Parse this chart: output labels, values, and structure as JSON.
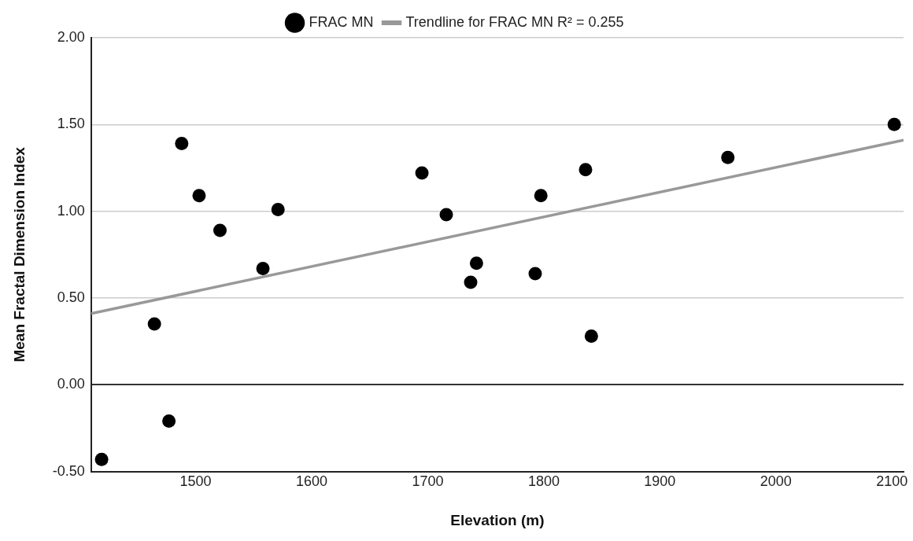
{
  "chart_data": {
    "type": "scatter",
    "xlabel": "Elevation (m)",
    "ylabel": "Mean Fractal Dimension Index",
    "xlim": [
      1410,
      2110
    ],
    "xticks": [
      1500,
      1600,
      1700,
      1800,
      1900,
      2000,
      2100
    ],
    "ylim": [
      -0.5,
      2.0
    ],
    "yticks": [
      {
        "value": -0.5,
        "label": "-0.50"
      },
      {
        "value": 0,
        "label": "0.00"
      },
      {
        "value": 0.5,
        "label": "0.50"
      },
      {
        "value": 1,
        "label": "1.00"
      },
      {
        "value": 1.5,
        "label": "1.50"
      },
      {
        "value": 2,
        "label": "2.00"
      }
    ],
    "grid": "y",
    "legend": "top",
    "marker": "circle",
    "series": [
      {
        "name": "FRAC MN",
        "color": "#000000",
        "x": [
          1419,
          1464.5,
          1477,
          1488,
          1503,
          1521,
          1558,
          1571,
          1695,
          1716,
          1737,
          1742,
          1792.6,
          1797.5,
          1836,
          1841,
          1958.6,
          2102
        ],
        "values": [
          -0.43,
          0.35,
          -0.21,
          1.39,
          1.09,
          0.89,
          0.67,
          1.01,
          1.22,
          0.98,
          0.59,
          0.7,
          0.64,
          1.09,
          1.24,
          0.28,
          1.31,
          1.5
        ]
      },
      {
        "name": "Trendline for FRAC MN R² = 0.255",
        "type": "line",
        "color": "#999999",
        "marker": "none",
        "line_style": "solid",
        "x": [
          1410,
          2110
        ],
        "values": [
          0.41,
          1.41
        ]
      }
    ]
  }
}
